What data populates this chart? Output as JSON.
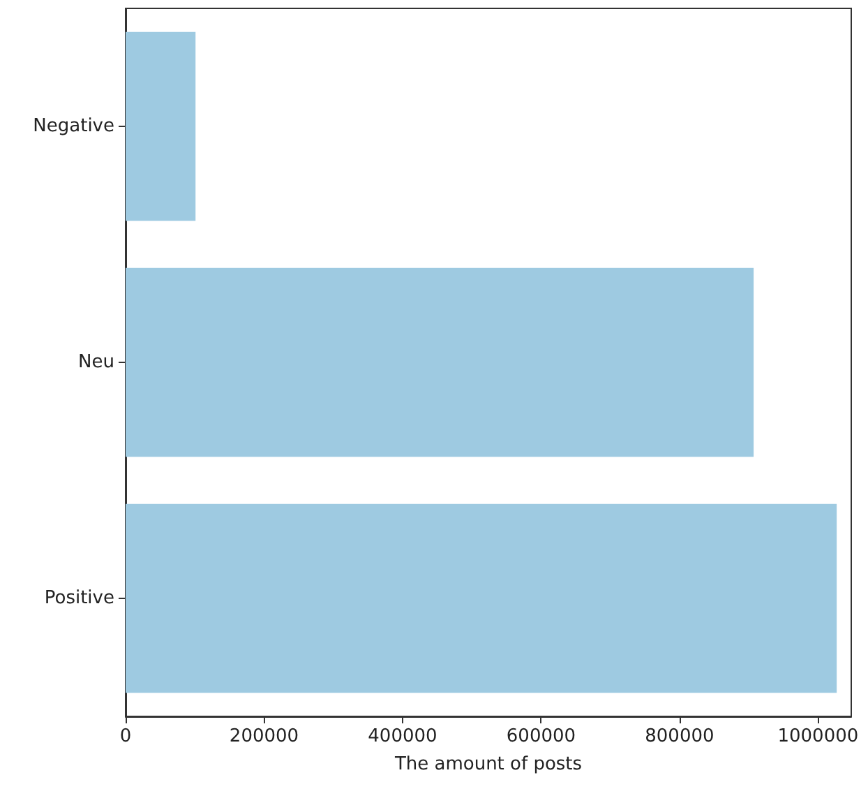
{
  "chart_data": {
    "type": "bar",
    "orientation": "horizontal",
    "xlabel": "The amount of posts",
    "categories": [
      "Negative",
      "Neu",
      "Positive"
    ],
    "values": [
      101000,
      907000,
      1027000
    ],
    "color": "#9ecae1",
    "xlim": [
      0,
      1048000
    ],
    "xticks": [
      0,
      200000,
      400000,
      600000,
      800000,
      1000000
    ],
    "grid": false
  }
}
